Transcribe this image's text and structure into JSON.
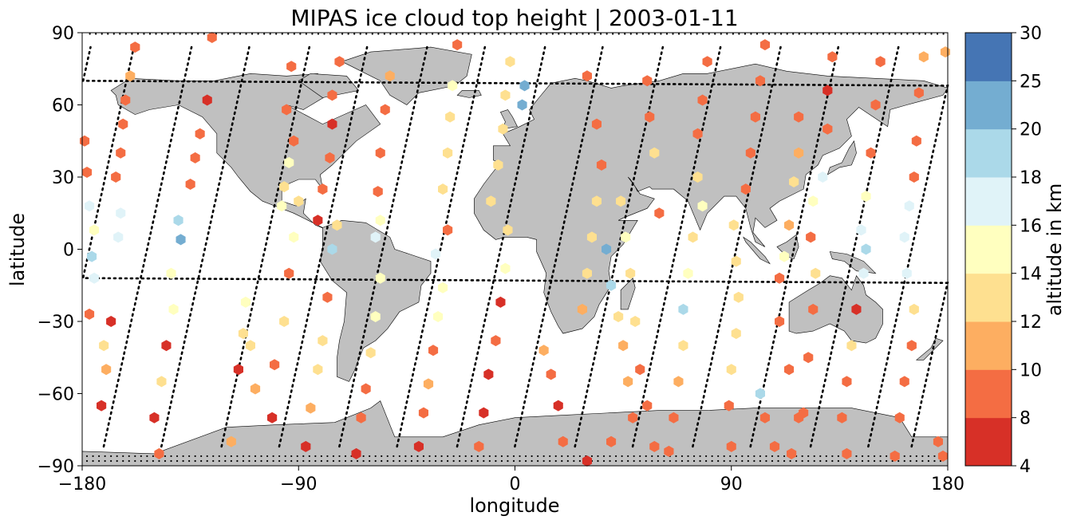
{
  "chart_data": {
    "type": "scatter",
    "title": "MIPAS ice cloud top height | 2003-01-11",
    "xlabel": "longitude",
    "ylabel": "latitude",
    "xlim": [
      -180,
      180
    ],
    "ylim": [
      -90,
      90
    ],
    "xticks": [
      -180,
      -90,
      0,
      90,
      180
    ],
    "xtick_labels": [
      "−180",
      "−90",
      "0",
      "90",
      "180"
    ],
    "yticks": [
      90,
      60,
      30,
      0,
      -30,
      -60,
      -90
    ],
    "ytick_labels": [
      "90",
      "60",
      "30",
      "0",
      "−30",
      "−60",
      "−90"
    ],
    "grid": false,
    "colorbar": {
      "label": "altitude in km",
      "bounds": [
        4,
        8,
        10,
        12,
        14,
        16,
        18,
        20,
        25,
        30
      ],
      "tick_labels": [
        "4",
        "8",
        "10",
        "12",
        "14",
        "16",
        "18",
        "20",
        "25",
        "30"
      ],
      "colors": [
        "#a50026",
        "#d73027",
        "#f46d43",
        "#fdae61",
        "#fee090",
        "#ffffbf",
        "#e0f3f8",
        "#abd9e9",
        "#74add1",
        "#4575b4",
        "#313695"
      ]
    },
    "colors": {
      "land": "#c0c0c0",
      "coast": "#000000",
      "track": "#000000"
    },
    "legend": "none",
    "tracks": [
      {
        "lon0": -177,
        "dir": 1
      },
      {
        "lon0": -153,
        "dir": 1
      },
      {
        "lon0": -129,
        "dir": 1
      },
      {
        "lon0": -104,
        "dir": 1
      },
      {
        "lon0": -80,
        "dir": 1
      },
      {
        "lon0": -55,
        "dir": 1
      },
      {
        "lon0": -31,
        "dir": 1
      },
      {
        "lon0": -6,
        "dir": 1
      },
      {
        "lon0": 18,
        "dir": 1
      },
      {
        "lon0": 43,
        "dir": 1
      },
      {
        "lon0": 67,
        "dir": 1
      },
      {
        "lon0": 92,
        "dir": 1
      },
      {
        "lon0": 116,
        "dir": 1
      },
      {
        "lon0": 141,
        "dir": 1
      },
      {
        "lon0": 165,
        "dir": 1
      }
    ],
    "points": [
      [
        -177,
        -27,
        9
      ],
      [
        -175,
        -12,
        17
      ],
      [
        -176,
        -3,
        19
      ],
      [
        -175,
        8,
        15
      ],
      [
        -177,
        18,
        16
      ],
      [
        -178,
        32,
        9
      ],
      [
        -179,
        45,
        8
      ],
      [
        -172,
        -65,
        7
      ],
      [
        -170,
        -50,
        11
      ],
      [
        -171,
        -40,
        13
      ],
      [
        -168,
        -30,
        7
      ],
      [
        -165,
        5,
        17
      ],
      [
        -164,
        15,
        17
      ],
      [
        -166,
        30,
        9
      ],
      [
        -164,
        40,
        8
      ],
      [
        -163,
        52,
        9
      ],
      [
        -162,
        62,
        9
      ],
      [
        -160,
        72,
        11
      ],
      [
        -158,
        84,
        9
      ],
      [
        -148,
        -85,
        9
      ],
      [
        -150,
        -70,
        7
      ],
      [
        -147,
        -55,
        13
      ],
      [
        -145,
        -40,
        7
      ],
      [
        -142,
        -25,
        14
      ],
      [
        -143,
        -10,
        14
      ],
      [
        -139,
        4,
        20
      ],
      [
        -140,
        12,
        19
      ],
      [
        -135,
        27,
        9
      ],
      [
        -133,
        38,
        9
      ],
      [
        -131,
        48,
        8
      ],
      [
        -128,
        62,
        7
      ],
      [
        -126,
        88,
        9
      ],
      [
        -118,
        -80,
        11
      ],
      [
        -115,
        -50,
        7
      ],
      [
        -113,
        -35,
        13
      ],
      [
        -112,
        -22,
        14
      ],
      [
        -110,
        -40,
        13
      ],
      [
        -108,
        -58,
        11
      ],
      [
        -101,
        -70,
        7
      ],
      [
        -100,
        -48,
        9
      ],
      [
        -96,
        -30,
        13
      ],
      [
        -94,
        -10,
        8
      ],
      [
        -92,
        5,
        14
      ],
      [
        -90,
        20,
        13
      ],
      [
        -97,
        18,
        14
      ],
      [
        -96,
        26,
        12
      ],
      [
        -94,
        36,
        14
      ],
      [
        -92,
        45,
        8
      ],
      [
        -95,
        58,
        9
      ],
      [
        -93,
        76,
        9
      ],
      [
        -87,
        -82,
        7
      ],
      [
        -85,
        -66,
        11
      ],
      [
        -82,
        -50,
        13
      ],
      [
        -80,
        -38,
        12
      ],
      [
        -78,
        -20,
        9
      ],
      [
        -76,
        0,
        19
      ],
      [
        -74,
        10,
        13
      ],
      [
        -82,
        12,
        7
      ],
      [
        -80,
        25,
        9
      ],
      [
        -77,
        38,
        8
      ],
      [
        -76,
        52,
        7
      ],
      [
        -76,
        64,
        9
      ],
      [
        -73,
        78,
        9
      ],
      [
        -66,
        -85,
        7
      ],
      [
        -64,
        -70,
        8
      ],
      [
        -62,
        -58,
        9
      ],
      [
        -60,
        -43,
        12
      ],
      [
        -58,
        -28,
        14
      ],
      [
        -56,
        -12,
        15
      ],
      [
        -58,
        5,
        17
      ],
      [
        -56,
        12,
        14
      ],
      [
        -57,
        24,
        9
      ],
      [
        -56,
        40,
        9
      ],
      [
        -54,
        58,
        8
      ],
      [
        -52,
        72,
        11
      ],
      [
        -40,
        -82,
        7
      ],
      [
        -38,
        -68,
        9
      ],
      [
        -36,
        -56,
        11
      ],
      [
        -34,
        -42,
        8
      ],
      [
        -32,
        -28,
        14
      ],
      [
        -30,
        -16,
        15
      ],
      [
        -33,
        -2,
        17
      ],
      [
        -28,
        8,
        9
      ],
      [
        -30,
        25,
        13
      ],
      [
        -28,
        40,
        12
      ],
      [
        -27,
        55,
        13
      ],
      [
        -26,
        68,
        14
      ],
      [
        -24,
        85,
        9
      ],
      [
        -15,
        -82,
        8
      ],
      [
        -13,
        -68,
        7
      ],
      [
        -11,
        -52,
        7
      ],
      [
        -8,
        -38,
        8
      ],
      [
        -6,
        -22,
        7
      ],
      [
        -4,
        -8,
        15
      ],
      [
        -3,
        8,
        12
      ],
      [
        -10,
        20,
        12
      ],
      [
        -7,
        35,
        13
      ],
      [
        -5,
        50,
        13
      ],
      [
        -4,
        64,
        12
      ],
      [
        -2,
        78,
        13
      ],
      [
        3,
        60,
        22
      ],
      [
        4,
        68,
        23
      ],
      [
        12,
        -42,
        11
      ],
      [
        15,
        -52,
        9
      ],
      [
        18,
        -65,
        7
      ],
      [
        20,
        -80,
        9
      ],
      [
        30,
        -88,
        7
      ],
      [
        40,
        -80,
        8
      ],
      [
        28,
        -25,
        11
      ],
      [
        30,
        -10,
        13
      ],
      [
        32,
        5,
        13
      ],
      [
        34,
        20,
        12
      ],
      [
        36,
        35,
        8
      ],
      [
        34,
        52,
        8
      ],
      [
        30,
        72,
        9
      ],
      [
        38,
        0,
        20
      ],
      [
        40,
        -15,
        19
      ],
      [
        43,
        -28,
        12
      ],
      [
        45,
        -40,
        11
      ],
      [
        47,
        -55,
        11
      ],
      [
        49,
        -70,
        8
      ],
      [
        58,
        -82,
        8
      ],
      [
        55,
        -65,
        8
      ],
      [
        52,
        -50,
        8
      ],
      [
        50,
        -30,
        12
      ],
      [
        48,
        -10,
        13
      ],
      [
        46,
        5,
        14
      ],
      [
        44,
        20,
        12
      ],
      [
        60,
        15,
        8
      ],
      [
        58,
        40,
        12
      ],
      [
        56,
        55,
        8
      ],
      [
        55,
        70,
        9
      ],
      [
        64,
        -84,
        8
      ],
      [
        66,
        -70,
        9
      ],
      [
        68,
        -55,
        10
      ],
      [
        70,
        -40,
        12
      ],
      [
        70,
        -25,
        19
      ],
      [
        72,
        -10,
        15
      ],
      [
        74,
        5,
        12
      ],
      [
        78,
        18,
        14
      ],
      [
        76,
        30,
        13
      ],
      [
        76,
        48,
        8
      ],
      [
        78,
        62,
        8
      ],
      [
        80,
        78,
        8
      ],
      [
        90,
        -82,
        8
      ],
      [
        89,
        -65,
        9
      ],
      [
        90,
        -50,
        13
      ],
      [
        92,
        -35,
        13
      ],
      [
        93,
        -20,
        12
      ],
      [
        92,
        -5,
        13
      ],
      [
        91,
        10,
        13
      ],
      [
        96,
        25,
        8
      ],
      [
        98,
        40,
        8
      ],
      [
        100,
        55,
        8
      ],
      [
        102,
        70,
        9
      ],
      [
        104,
        85,
        9
      ],
      [
        102,
        -60,
        19
      ],
      [
        104,
        -70,
        8
      ],
      [
        108,
        -82,
        9
      ],
      [
        115,
        -85,
        8
      ],
      [
        118,
        -70,
        8
      ],
      [
        114,
        -50,
        9
      ],
      [
        110,
        -30,
        8
      ],
      [
        110,
        -12,
        8
      ],
      [
        112,
        -3,
        15
      ],
      [
        114,
        10,
        11
      ],
      [
        116,
        28,
        13
      ],
      [
        118,
        40,
        11
      ],
      [
        118,
        55,
        9
      ],
      [
        120,
        -68,
        9
      ],
      [
        122,
        -45,
        8
      ],
      [
        124,
        -25,
        8
      ],
      [
        125,
        -10,
        13
      ],
      [
        123,
        5,
        9
      ],
      [
        124,
        20,
        15
      ],
      [
        128,
        30,
        16
      ],
      [
        130,
        50,
        8
      ],
      [
        130,
        66,
        7
      ],
      [
        132,
        80,
        9
      ],
      [
        138,
        -85,
        8
      ],
      [
        136,
        -70,
        9
      ],
      [
        138,
        -55,
        9
      ],
      [
        140,
        -40,
        13
      ],
      [
        142,
        -25,
        7
      ],
      [
        145,
        -10,
        17
      ],
      [
        146,
        0,
        19
      ],
      [
        144,
        8,
        16
      ],
      [
        146,
        22,
        14
      ],
      [
        148,
        40,
        8
      ],
      [
        150,
        60,
        9
      ],
      [
        152,
        78,
        9
      ],
      [
        158,
        -86,
        8
      ],
      [
        160,
        -70,
        9
      ],
      [
        162,
        -55,
        8
      ],
      [
        165,
        -40,
        8
      ],
      [
        166,
        -25,
        13
      ],
      [
        163,
        -10,
        16
      ],
      [
        162,
        5,
        17
      ],
      [
        164,
        18,
        17
      ],
      [
        166,
        30,
        8
      ],
      [
        167,
        45,
        8
      ],
      [
        168,
        65,
        9
      ],
      [
        170,
        80,
        11
      ],
      [
        176,
        -80,
        9
      ],
      [
        178,
        -86,
        8
      ],
      [
        179,
        82,
        11
      ]
    ]
  }
}
